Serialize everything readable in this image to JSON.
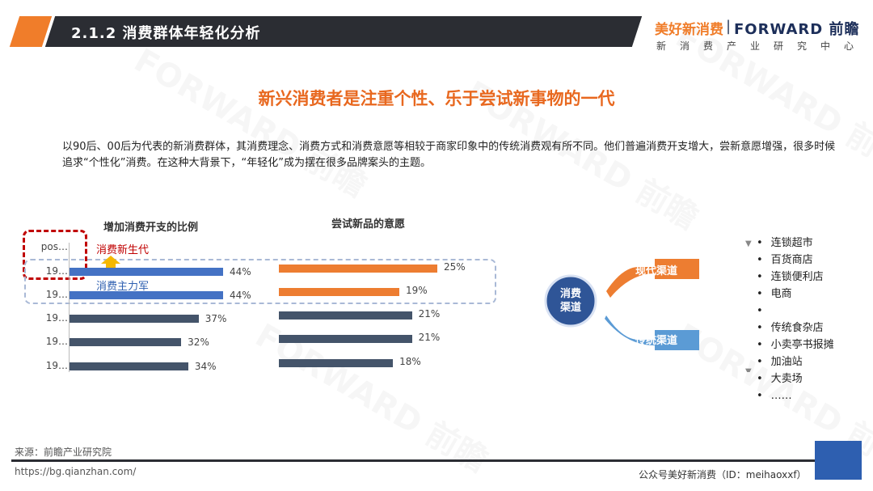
{
  "header": {
    "section_title": "2.1.2 消费群体年轻化分析",
    "brand_meihao": "美好新消费",
    "brand_forward": "FORWARD 前瞻",
    "brand_sub": "新消费产业研究中心"
  },
  "main_title": "新兴消费者是注重个性、乐于尝试新事物的一代",
  "intro": "以90后、00后为代表的新消费群体，其消费理念、消费方式和消费意愿等相较于商家印象中的传统消费观有所不同。他们普遍消费开支增大，尝新意愿增强，很多时候追求“个性化”消费。在这种大背景下，“年轻化”成为摆在很多品牌案头的主题。",
  "chart_data": [
    {
      "type": "bar",
      "title": "增加消费开支的比例",
      "categories": [
        "pos…",
        "19…",
        "19…",
        "19…",
        "19…",
        "19…"
      ],
      "values": [
        null,
        44,
        44,
        37,
        32,
        34
      ],
      "value_labels": [
        "",
        "44%",
        "44%",
        "37%",
        "32%",
        "34%"
      ],
      "colors": [
        "#4472c4",
        "#4472c4",
        "#4472c4",
        "#44546a",
        "#44546a",
        "#44546a"
      ]
    },
    {
      "type": "bar",
      "title": "尝试新品的意愿",
      "values": [
        null,
        25,
        19,
        21,
        21,
        18
      ],
      "value_labels": [
        "",
        "25%",
        "19%",
        "21%",
        "21%",
        "18%"
      ],
      "colors": [
        "#ed7d31",
        "#ed7d31",
        "#ed7d31",
        "#44546a",
        "#44546a",
        "#44546a"
      ]
    }
  ],
  "annotations": {
    "new_gen": "消费新生代",
    "main_force": "消费主力军"
  },
  "tree": {
    "root": "消费\n渠道",
    "modern": "现代渠道",
    "traditional": "传统渠道",
    "modern_items": [
      "连锁超市",
      "百货商店",
      "连锁便利店",
      "电商"
    ],
    "traditional_items": [
      "",
      "传统食杂店",
      "小卖亭书报摊",
      "加油站",
      "大卖场",
      "……"
    ]
  },
  "footer": {
    "source": "来源：前瞻产业研究院",
    "url": "https://bg.qianzhan.com/",
    "account": "公众号美好新消费（ID：meihaoxxf）"
  },
  "colors": {
    "accent_orange": "#f07d2a",
    "header_dark": "#2b2d33",
    "bar_blue": "#4472c4",
    "bar_dark": "#44546a",
    "bar_orange": "#ed7d31",
    "highlight_red": "#c00000"
  }
}
